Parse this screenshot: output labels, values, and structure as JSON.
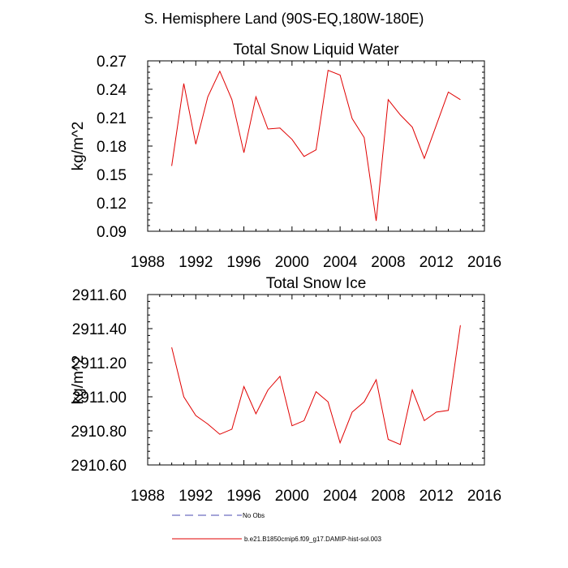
{
  "figure": {
    "title": "S. Hemisphere Land (90S-EQ,180W-180E)"
  },
  "legend": {
    "entries": [
      {
        "label": "No Obs",
        "color": "#4a4ab0",
        "dash": "dashed"
      },
      {
        "label": "b.e21.B1850cmip6.f09_g17.DAMIP-hist-sol.003",
        "color": "#e00000",
        "dash": "solid"
      }
    ]
  },
  "chart_data": [
    {
      "type": "line",
      "title": "Total Snow Liquid Water",
      "xlabel": "",
      "ylabel": "kg/m^2",
      "xlim": [
        1988,
        2016
      ],
      "ylim": [
        0.09,
        0.27
      ],
      "x_ticks": [
        1988,
        1992,
        1996,
        2000,
        2004,
        2008,
        2012,
        2016
      ],
      "y_ticks": [
        0.09,
        0.12,
        0.15,
        0.18,
        0.21,
        0.24,
        0.27
      ],
      "y_tick_labels": [
        "0.09",
        "0.12",
        "0.15",
        "0.18",
        "0.21",
        "0.24",
        "0.27"
      ],
      "grid": false,
      "series": [
        {
          "color": "#e00000",
          "x": [
            1990,
            1991,
            1992,
            1993,
            1994,
            1995,
            1996,
            1997,
            1998,
            1999,
            2000,
            2001,
            2002,
            2003,
            2004,
            2005,
            2006,
            2007,
            2008,
            2009,
            2010,
            2011,
            2012,
            2013,
            2014
          ],
          "y": [
            0.159,
            0.246,
            0.182,
            0.232,
            0.259,
            0.229,
            0.173,
            0.232,
            0.198,
            0.199,
            0.187,
            0.169,
            0.176,
            0.26,
            0.255,
            0.209,
            0.189,
            0.101,
            0.229,
            0.213,
            0.2,
            0.167,
            0.202,
            0.237,
            0.229
          ]
        }
      ]
    },
    {
      "type": "line",
      "title": "Total Snow Ice",
      "xlabel": "",
      "ylabel": "kg/m^2",
      "xlim": [
        1988,
        2016
      ],
      "ylim": [
        2910.6,
        2911.6
      ],
      "x_ticks": [
        1988,
        1992,
        1996,
        2000,
        2004,
        2008,
        2012,
        2016
      ],
      "y_ticks": [
        2910.6,
        2910.8,
        2911.0,
        2911.2,
        2911.4,
        2911.6
      ],
      "y_tick_labels": [
        "2910.60",
        "2910.80",
        "2911.00",
        "2911.20",
        "2911.40",
        "2911.60"
      ],
      "grid": false,
      "series": [
        {
          "color": "#e00000",
          "x": [
            1990,
            1991,
            1992,
            1993,
            1994,
            1995,
            1996,
            1997,
            1998,
            1999,
            2000,
            2001,
            2002,
            2003,
            2004,
            2005,
            2006,
            2007,
            2008,
            2009,
            2010,
            2011,
            2012,
            2013,
            2014
          ],
          "y": [
            2911.29,
            2911.0,
            2910.89,
            2910.84,
            2910.78,
            2910.81,
            2911.06,
            2910.9,
            2911.04,
            2911.12,
            2910.83,
            2910.86,
            2911.03,
            2910.97,
            2910.73,
            2910.91,
            2910.97,
            2911.1,
            2910.75,
            2910.72,
            2911.04,
            2910.86,
            2910.91,
            2910.92,
            2911.42
          ]
        }
      ]
    }
  ]
}
